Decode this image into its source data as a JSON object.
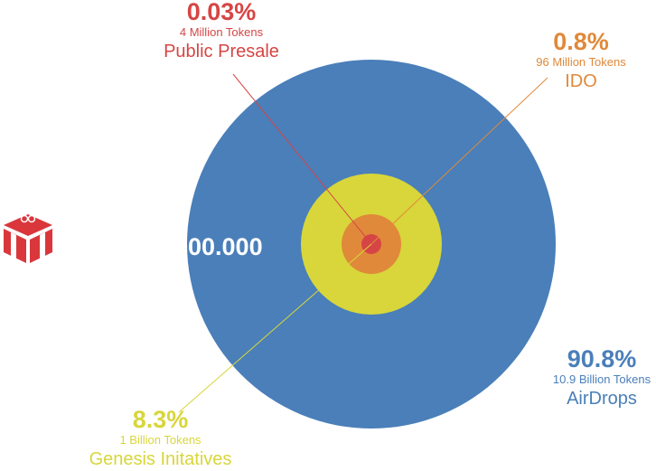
{
  "center_value": "00.000",
  "colors": {
    "airdrops": "#4a7fb9",
    "genesis": "#d8d63a",
    "ido": "#e0893a",
    "presale": "#d64545",
    "logo": "#d9373c"
  },
  "logo_icon": "gift-box-icon",
  "chart_data": {
    "type": "pie",
    "title": "",
    "series": [
      {
        "name": "AirDrops",
        "percent": 90.8,
        "percent_label": "90.8%",
        "tokens": "10.9 Billion Tokens"
      },
      {
        "name": "Genesis Initatives",
        "percent": 8.3,
        "percent_label": "8.3%",
        "tokens": "1 Billion Tokens"
      },
      {
        "name": "IDO",
        "percent": 0.8,
        "percent_label": "0.8%",
        "tokens": "96 Million Tokens"
      },
      {
        "name": "Public Presale",
        "percent": 0.03,
        "percent_label": "0.03%",
        "tokens": "4 Million Tokens"
      }
    ]
  }
}
